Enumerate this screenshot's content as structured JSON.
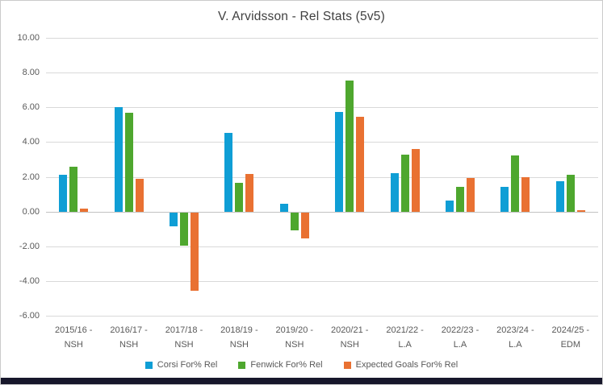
{
  "chart_data": {
    "type": "bar",
    "title": "V. Arvidsson - Rel Stats (5v5)",
    "categories": [
      {
        "line1": "2015/16 -",
        "line2": "NSH"
      },
      {
        "line1": "2016/17 -",
        "line2": "NSH"
      },
      {
        "line1": "2017/18 -",
        "line2": "NSH"
      },
      {
        "line1": "2018/19 -",
        "line2": "NSH"
      },
      {
        "line1": "2019/20 -",
        "line2": "NSH"
      },
      {
        "line1": "2020/21 -",
        "line2": "NSH"
      },
      {
        "line1": "2021/22 -",
        "line2": "L.A"
      },
      {
        "line1": "2022/23 -",
        "line2": "L.A"
      },
      {
        "line1": "2023/24 -",
        "line2": "L.A"
      },
      {
        "line1": "2024/25 -",
        "line2": "EDM"
      }
    ],
    "series": [
      {
        "name": "Corsi For% Rel",
        "color": "#0F9ED5",
        "values": [
          2.1,
          6.0,
          -0.8,
          4.55,
          0.45,
          5.75,
          2.2,
          0.65,
          1.4,
          1.75
        ]
      },
      {
        "name": "Fenwick For% Rel",
        "color": "#4EA72E",
        "values": [
          2.6,
          5.7,
          -1.9,
          1.65,
          -1.05,
          7.55,
          3.3,
          1.4,
          3.25,
          2.1
        ]
      },
      {
        "name": "Expected Goals For% Rel",
        "color": "#E97132",
        "values": [
          0.15,
          1.9,
          -4.5,
          2.15,
          -1.5,
          5.45,
          3.6,
          1.95,
          2.0,
          0.1
        ]
      }
    ],
    "ylim": [
      -6,
      10
    ],
    "ytick_values": [
      10,
      8,
      6,
      4,
      2,
      0,
      -2,
      -4,
      -6
    ],
    "ytick_labels": [
      "10.00",
      "8.00",
      "6.00",
      "4.00",
      "2.00",
      "0.00",
      "-2.00",
      "-4.00",
      "-6.00"
    ],
    "xlabel": "",
    "ylabel": "",
    "grid": true,
    "legend_position": "bottom",
    "colors": {
      "gridline": "#D9D9D9",
      "zero_line": "#C2C2C2",
      "axis_text": "#595959",
      "title_text": "#3F3F3F"
    }
  },
  "window": {
    "bottom_strip_color": "#17172B"
  }
}
